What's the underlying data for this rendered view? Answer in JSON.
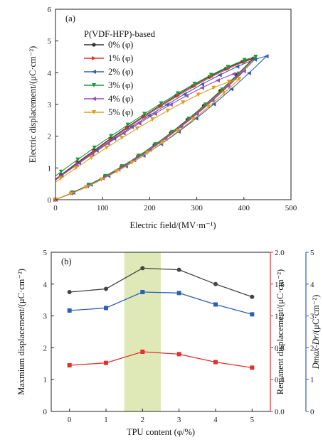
{
  "colors": {
    "s0": "#333333",
    "s1": "#e0312d",
    "s2": "#2f5fb5",
    "s3": "#1e9a3e",
    "s4": "#a049b8",
    "s5": "#d9a21a",
    "highlight": "#dfe9b8",
    "b_max": "#444444",
    "b_rem": "#e0312d",
    "b_diff": "#2f5fb5"
  },
  "chart_data": [
    {
      "type": "line",
      "panel_label": "(a)",
      "legend_title": "P(VDF-HFP)-based",
      "legend_placement": "top-left",
      "xlabel": "Electric field/(MV·m⁻¹)",
      "ylabel": "Electric displacement/(μC·cm⁻²)",
      "xlim": [
        0,
        500
      ],
      "ylim": [
        0,
        6
      ],
      "xticks": [
        "0",
        "100",
        "200",
        "300",
        "400",
        "500"
      ],
      "yticks": [
        "0",
        "1",
        "2",
        "3",
        "4",
        "5",
        "6"
      ],
      "grid": false,
      "series": [
        {
          "name": "0% (φ)",
          "Emax": 420,
          "Dmax": 4.45,
          "Dr": 0.65
        },
        {
          "name": "1% (φ)",
          "Emax": 425,
          "Dmax": 4.45,
          "Dr": 0.62
        },
        {
          "name": "2% (φ)",
          "Emax": 448,
          "Dmax": 4.52,
          "Dr": 0.62
        },
        {
          "name": "3% (φ)",
          "Emax": 425,
          "Dmax": 4.5,
          "Dr": 0.75
        },
        {
          "name": "4% (φ)",
          "Emax": 400,
          "Dmax": 4.05,
          "Dr": 0.62
        },
        {
          "name": "5% (φ)",
          "Emax": 390,
          "Dmax": 3.8,
          "Dr": 0.55
        }
      ]
    },
    {
      "type": "line",
      "panel_label": "(b)",
      "xlabel": "TPU content (φ/%)",
      "ylabel_left": "Maxmium displacement/(μC·cm⁻²)",
      "ylabel_right1": "Remanent displacement/(μC·cm⁻²)",
      "ylabel_right2_italic": "Dmax-Dr",
      "ylabel_right2_unit": "/(μC·cm⁻²)",
      "x": [
        0,
        1,
        2,
        3,
        4,
        5
      ],
      "xlim": [
        -0.5,
        5.5
      ],
      "xticks": [
        "0",
        "1",
        "2",
        "3",
        "4",
        "5"
      ],
      "yticks_left": [
        "0",
        "1",
        "2",
        "3",
        "4",
        "5"
      ],
      "yticks_right1": [
        "0.0",
        "0.4",
        "0.8",
        "1.2",
        "1.6",
        "2.0"
      ],
      "yticks_right2": [
        "0",
        "1",
        "2",
        "3",
        "4",
        "5"
      ],
      "ylim_left": [
        0,
        5
      ],
      "ylim_right1": [
        0,
        2
      ],
      "ylim_right2": [
        0,
        5
      ],
      "highlight_x": [
        1.5,
        2.5
      ],
      "series": [
        {
          "name": "Maxmium displacement",
          "axis": "left",
          "values": [
            3.75,
            3.85,
            4.5,
            4.45,
            4.0,
            3.6
          ]
        },
        {
          "name": "Remanent displacement",
          "axis": "right1",
          "values": [
            0.58,
            0.61,
            0.75,
            0.72,
            0.62,
            0.55
          ]
        },
        {
          "name": "Dmax-Dr",
          "axis": "right2",
          "values": [
            3.17,
            3.25,
            3.75,
            3.72,
            3.36,
            3.05
          ]
        }
      ]
    }
  ]
}
